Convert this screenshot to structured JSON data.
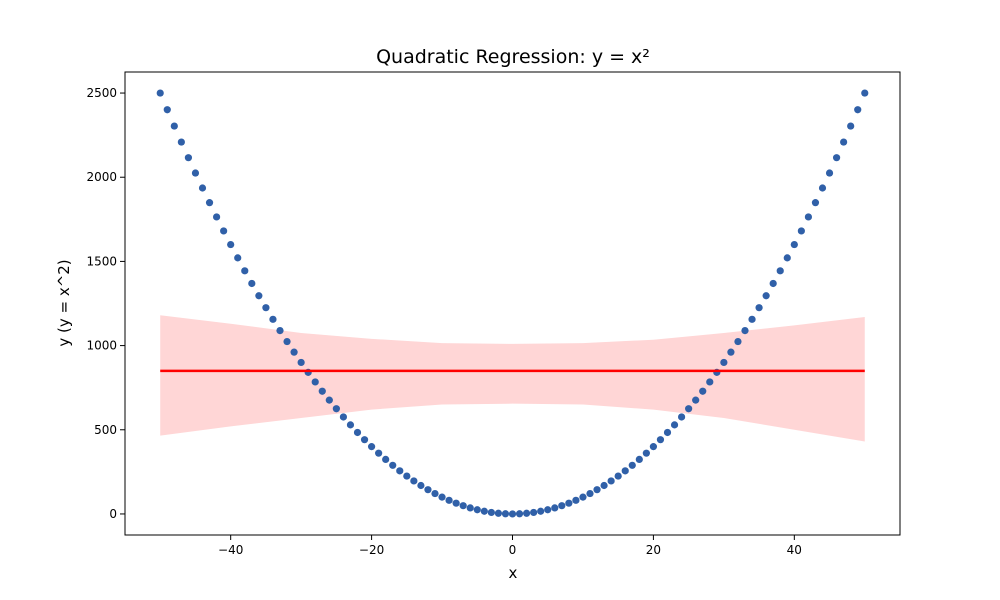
{
  "chart_data": {
    "type": "scatter",
    "title": "Quadratic Regression: y = x²",
    "xlabel": "x",
    "ylabel": "y (y = x^2)",
    "xlim": [
      -55,
      55
    ],
    "ylim": [
      -125,
      2625
    ],
    "xticks": [
      -40,
      -20,
      0,
      20,
      40
    ],
    "xtick_labels": [
      "−40",
      "−20",
      "0",
      "20",
      "40"
    ],
    "yticks": [
      0,
      500,
      1000,
      1500,
      2000,
      2500
    ],
    "ytick_labels": [
      "0",
      "500",
      "1000",
      "1500",
      "2000",
      "2500"
    ],
    "grid": false,
    "scatter": {
      "x_start": -50,
      "x_end": 50,
      "step": 1,
      "formula": "y = x^2",
      "color": "#3060a8"
    },
    "regression": {
      "x": [
        -50,
        50
      ],
      "y": [
        850,
        850
      ],
      "color": "#ff0000"
    },
    "confidence_band": {
      "x": [
        -50,
        -40,
        -30,
        -20,
        -10,
        0,
        10,
        20,
        30,
        40,
        50
      ],
      "lower": [
        465,
        520,
        570,
        620,
        650,
        655,
        650,
        620,
        570,
        500,
        430
      ],
      "upper": [
        1180,
        1130,
        1075,
        1040,
        1015,
        1010,
        1015,
        1035,
        1075,
        1120,
        1170
      ],
      "color": "#ffd6d6"
    }
  }
}
